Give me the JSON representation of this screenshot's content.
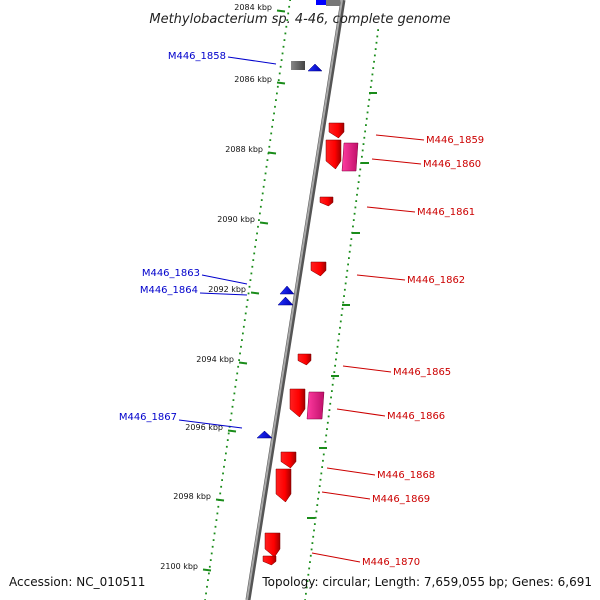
{
  "title": "Methylobacterium sp. 4-46, complete genome",
  "accession": "Accession: NC_010511",
  "topology": "Topology: circular; Length: 7,659,055 bp; Genes: 6,691",
  "colors": {
    "forward_label": "#0000cc",
    "reverse_label": "#cc0000",
    "forward_gene": "#0000ff",
    "reverse_gene": "#ff0000",
    "rna_gene": "#ff1493",
    "pseudo_gene": "#666666",
    "dots": "#1a8c1a",
    "backbone": "#888888"
  },
  "ticks": [
    {
      "label": "2084 kbp"
    },
    {
      "label": "2086 kbp"
    },
    {
      "label": "2088 kbp"
    },
    {
      "label": "2090 kbp"
    },
    {
      "label": "2092 kbp"
    },
    {
      "label": "2094 kbp"
    },
    {
      "label": "2096 kbp"
    },
    {
      "label": "2098 kbp"
    },
    {
      "label": "2100 kbp"
    }
  ],
  "forward_genes": [
    {
      "label": "M446_1858"
    },
    {
      "label": "M446_1863"
    },
    {
      "label": "M446_1864"
    },
    {
      "label": "M446_1867"
    }
  ],
  "reverse_genes": [
    {
      "label": "M446_1859"
    },
    {
      "label": "M446_1860"
    },
    {
      "label": "M446_1861"
    },
    {
      "label": "M446_1862"
    },
    {
      "label": "M446_1865"
    },
    {
      "label": "M446_1866"
    },
    {
      "label": "M446_1868"
    },
    {
      "label": "M446_1869"
    },
    {
      "label": "M446_1870"
    }
  ]
}
